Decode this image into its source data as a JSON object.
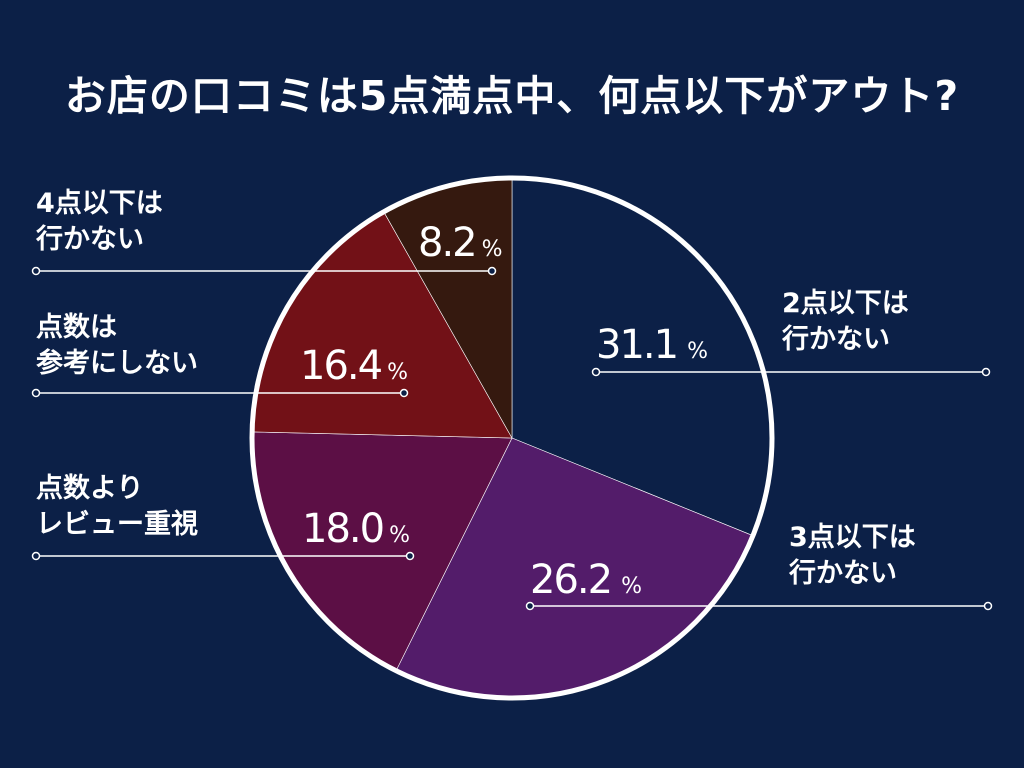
{
  "title": "お店の口コミは5点満点中、何点以下がアウト?",
  "chart_data": {
    "type": "pie",
    "unit": "%",
    "slices": [
      {
        "label": [
          "2点以下は",
          "行かない"
        ],
        "value": 31.1,
        "display": "31.1",
        "color": "#0c2047"
      },
      {
        "label": [
          "3点以下は",
          "行かない"
        ],
        "value": 26.2,
        "display": "26.2",
        "color": "#531c6a"
      },
      {
        "label": [
          "点数より",
          "レビュー重視"
        ],
        "value": 18.0,
        "display": "18.0",
        "color": "#5c0f45"
      },
      {
        "label": [
          "点数は",
          "参考にしない"
        ],
        "value": 16.4,
        "display": "16.4",
        "color": "#721117"
      },
      {
        "label": [
          "4点以下は",
          "行かない"
        ],
        "value": 8.2,
        "display": "8.2",
        "color": "#35190f"
      }
    ]
  }
}
